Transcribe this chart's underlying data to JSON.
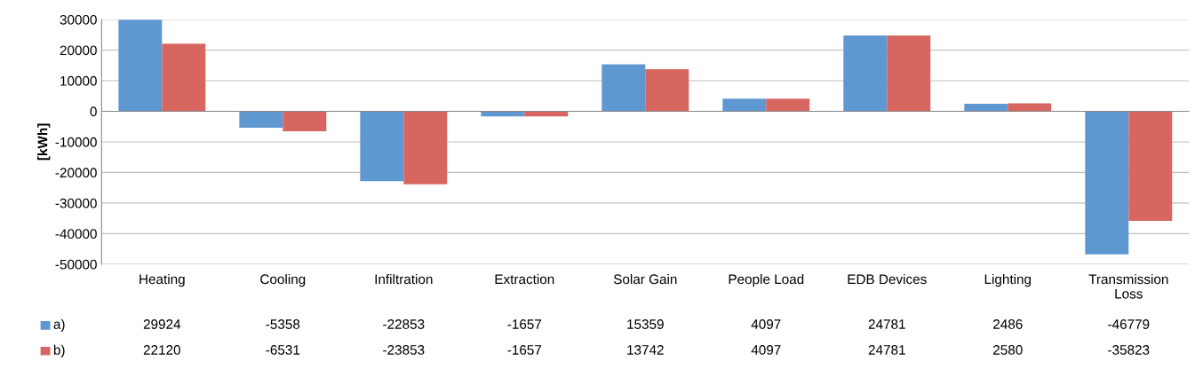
{
  "chart_data": {
    "type": "bar",
    "ylabel": "[kWh]",
    "categories": [
      "Heating",
      "Cooling",
      "Infiltration",
      "Extraction",
      "Solar Gain",
      "People Load",
      "EDB Devices",
      "Lighting",
      "Transmission\nLoss"
    ],
    "series": [
      {
        "name": "a)",
        "color": "#5f97d1",
        "values": [
          29924,
          -5358,
          -22853,
          -1657,
          15359,
          4097,
          24781,
          2486,
          -46779
        ]
      },
      {
        "name": "b)",
        "color": "#d6665f",
        "values": [
          22120,
          -6531,
          -23853,
          -1657,
          13742,
          4097,
          24781,
          2580,
          -35823
        ]
      }
    ],
    "ylim": [
      -50000,
      30000
    ],
    "yticks": [
      -50000,
      -40000,
      -30000,
      -20000,
      -10000,
      0,
      10000,
      20000,
      30000
    ],
    "grid": "y",
    "legend": "bottom left",
    "data_labels": true
  }
}
